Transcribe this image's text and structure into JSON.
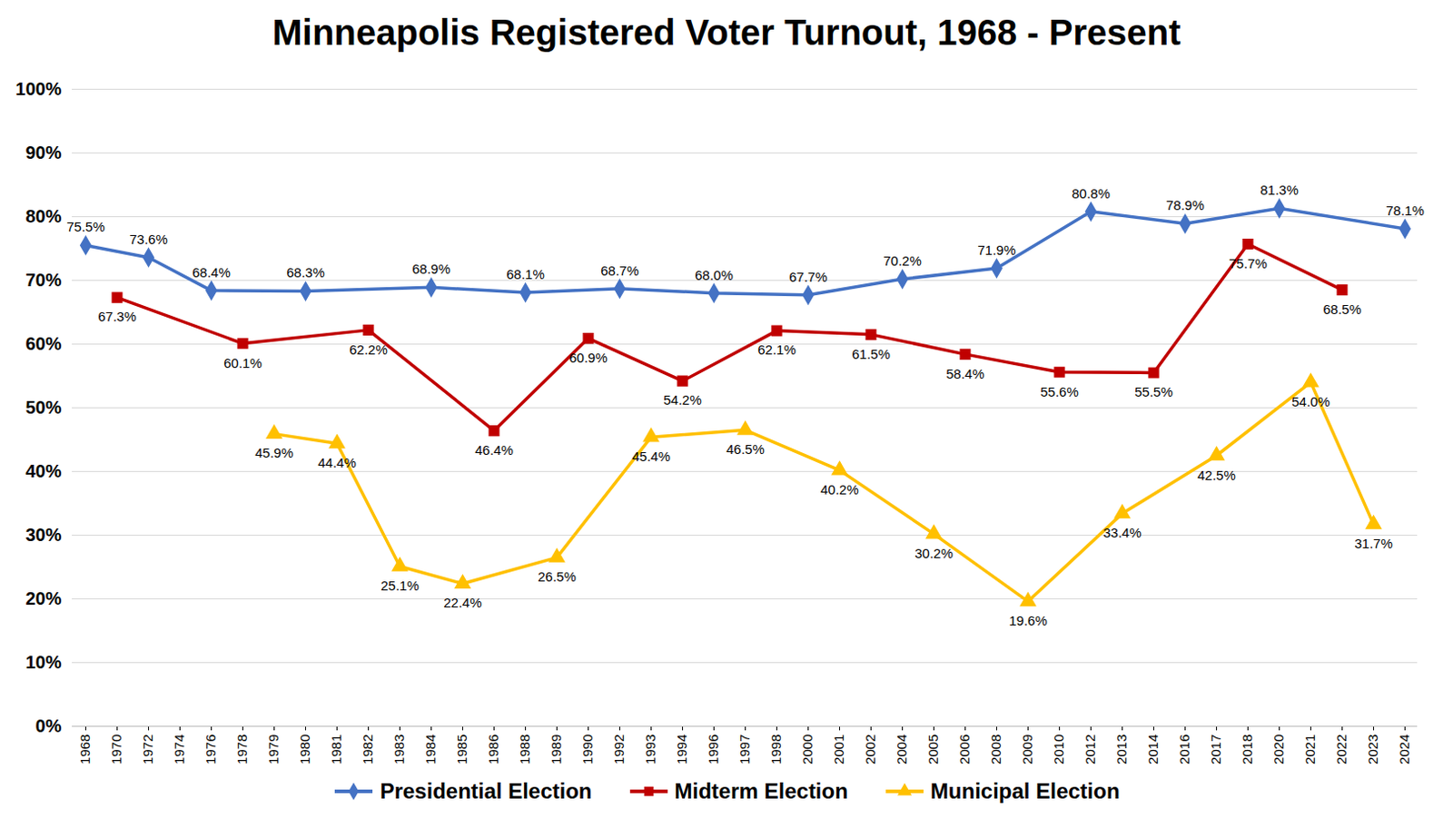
{
  "chart_data": {
    "type": "line",
    "title": "Minneapolis Registered Voter Turnout, 1968 - Present",
    "categories": [
      "1968",
      "1970",
      "1972",
      "1974",
      "1976",
      "1978",
      "1979",
      "1980",
      "1981",
      "1982",
      "1983",
      "1984",
      "1985",
      "1986",
      "1988",
      "1989",
      "1990",
      "1992",
      "1993",
      "1994",
      "1996",
      "1997",
      "1998",
      "2000",
      "2001",
      "2002",
      "2004",
      "2005",
      "2006",
      "2008",
      "2009",
      "2010",
      "2012",
      "2013",
      "2014",
      "2016",
      "2017",
      "2018",
      "2020",
      "2021",
      "2022",
      "2023",
      "2024"
    ],
    "series": [
      {
        "name": "Presidential Election",
        "color": "#4472C4",
        "marker": "diamond",
        "values": [
          75.5,
          null,
          73.6,
          null,
          68.4,
          null,
          null,
          68.3,
          null,
          null,
          null,
          68.9,
          null,
          null,
          68.1,
          null,
          null,
          68.7,
          null,
          null,
          68.0,
          null,
          null,
          67.7,
          null,
          null,
          70.2,
          null,
          null,
          71.9,
          null,
          null,
          80.8,
          null,
          null,
          78.9,
          null,
          null,
          81.3,
          null,
          null,
          null,
          78.1
        ],
        "value_labels": [
          "75.5%",
          null,
          "73.6%",
          null,
          "68.4%",
          null,
          null,
          "68.3%",
          null,
          null,
          null,
          "68.9%",
          null,
          null,
          "68.1%",
          null,
          null,
          "68.7%",
          null,
          null,
          "68.0%",
          null,
          null,
          "67.7%",
          null,
          null,
          "70.2%",
          null,
          null,
          "71.9%",
          null,
          null,
          "80.8%",
          null,
          null,
          "78.9%",
          null,
          null,
          "81.3%",
          null,
          null,
          null,
          "78.1%"
        ]
      },
      {
        "name": "Midterm Election",
        "color": "#C00000",
        "marker": "square",
        "values": [
          null,
          67.3,
          null,
          null,
          null,
          60.1,
          null,
          null,
          null,
          62.2,
          null,
          null,
          null,
          46.4,
          null,
          null,
          60.9,
          null,
          null,
          54.2,
          null,
          null,
          62.1,
          null,
          null,
          61.5,
          null,
          null,
          58.4,
          null,
          null,
          55.6,
          null,
          null,
          55.5,
          null,
          null,
          75.7,
          null,
          null,
          68.5,
          null,
          null
        ],
        "value_labels": [
          null,
          "67.3%",
          null,
          null,
          null,
          "60.1%",
          null,
          null,
          null,
          "62.2%",
          null,
          null,
          null,
          "46.4%",
          null,
          null,
          "60.9%",
          null,
          null,
          "54.2%",
          null,
          null,
          "62.1%",
          null,
          null,
          "61.5%",
          null,
          null,
          "58.4%",
          null,
          null,
          "55.6%",
          null,
          null,
          "55.5%",
          null,
          null,
          "75.7%",
          null,
          null,
          "68.5%",
          null,
          null
        ]
      },
      {
        "name": "Municipal Election",
        "color": "#FFC000",
        "marker": "triangle",
        "values": [
          null,
          null,
          null,
          null,
          null,
          null,
          45.9,
          null,
          44.4,
          null,
          25.1,
          null,
          22.4,
          null,
          null,
          26.5,
          null,
          null,
          45.4,
          null,
          null,
          46.5,
          null,
          null,
          40.2,
          null,
          null,
          30.2,
          null,
          null,
          19.6,
          null,
          null,
          33.4,
          null,
          null,
          42.5,
          null,
          null,
          54.0,
          null,
          31.7,
          null
        ],
        "value_labels": [
          null,
          null,
          null,
          null,
          null,
          null,
          "45.9%",
          null,
          "44.4%",
          null,
          "25.1%",
          null,
          "22.4%",
          null,
          null,
          "26.5%",
          null,
          null,
          "45.4%",
          null,
          null,
          "46.5%",
          null,
          null,
          "40.2%",
          null,
          null,
          "30.2%",
          null,
          null,
          "19.6%",
          null,
          null,
          "33.4%",
          null,
          null,
          "42.5%",
          null,
          null,
          "54.0%",
          null,
          "31.7%",
          null
        ]
      }
    ],
    "ylim": [
      0,
      100
    ],
    "yticks": [
      {
        "value": 0,
        "label": "0%"
      },
      {
        "value": 10,
        "label": "10%"
      },
      {
        "value": 20,
        "label": "20%"
      },
      {
        "value": 30,
        "label": "30%"
      },
      {
        "value": 40,
        "label": "40%"
      },
      {
        "value": 50,
        "label": "50%"
      },
      {
        "value": 60,
        "label": "60%"
      },
      {
        "value": 70,
        "label": "70%"
      },
      {
        "value": 80,
        "label": "80%"
      },
      {
        "value": 90,
        "label": "90%"
      },
      {
        "value": 100,
        "label": "100%"
      }
    ],
    "grid": true,
    "data_labels": true,
    "legend": "bottom"
  }
}
